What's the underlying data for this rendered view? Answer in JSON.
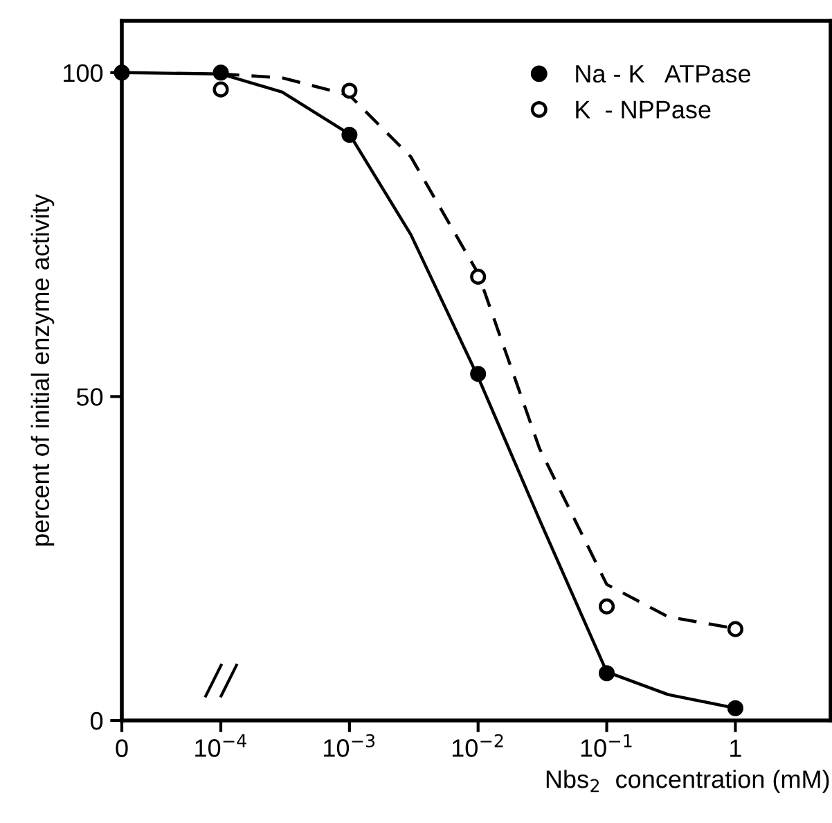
{
  "chart_data": {
    "type": "scatter",
    "xlabel": "Nbs$_{2}$  concentration (mM)",
    "ylabel": "percent of initial enzyme activity",
    "log": "x",
    "xlim": [
      1.7e-05,
      5.5
    ],
    "ylim": [
      0,
      108
    ],
    "xticks": [
      {
        "value": 1.7e-05,
        "label": "0"
      },
      {
        "value": 0.0001,
        "label": "10$^{−4}$"
      },
      {
        "value": 0.001,
        "label": "10$^{−3}$"
      },
      {
        "value": 0.01,
        "label": "10$^{−2}$"
      },
      {
        "value": 0.1,
        "label": "10$^{−1}$"
      },
      1
    ],
    "yticks": [
      0,
      50,
      100
    ],
    "legend": "top right",
    "grid": false,
    "series": [
      {
        "name": "Na - K   ATPase",
        "color": "#000000",
        "marker": "circle",
        "x": [
          1.7e-05,
          0.0001,
          0.001,
          0.01,
          0.1,
          1
        ],
        "values": [
          100,
          100,
          90.4,
          53.5,
          7.3,
          1.9
        ]
      },
      {
        "name": "K  - NPPase",
        "color": "#ffffff",
        "marker": "circle",
        "x": [
          0.0001,
          0.001,
          0.01,
          0.1,
          1
        ],
        "values": [
          97.4,
          97.2,
          68.5,
          17.6,
          14.1
        ]
      },
      {
        "type": "line",
        "color": "#000000",
        "line_style": "solid",
        "x": [
          1.7e-05,
          0.0001,
          0.0003,
          0.001,
          0.003,
          0.01,
          0.03,
          0.1,
          0.3,
          1
        ],
        "values": [
          100,
          99.8,
          97,
          90.5,
          75,
          53,
          31,
          7.5,
          4,
          1.9
        ]
      },
      {
        "type": "line",
        "color": "#000000",
        "line_style": "dashed",
        "x": [
          0.0001,
          0.0003,
          0.001,
          0.003,
          0.01,
          0.03,
          0.1,
          0.3,
          1
        ],
        "values": [
          99.8,
          99.2,
          96.5,
          87,
          69,
          42,
          21,
          16,
          14.2
        ]
      }
    ]
  }
}
